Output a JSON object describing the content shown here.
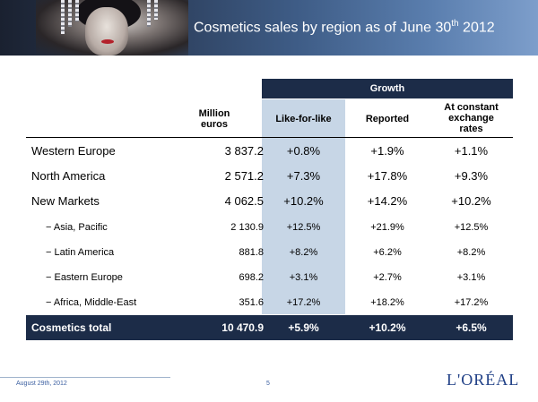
{
  "title": {
    "main": "Cosmetics sales by region as of June 30",
    "sup": "th",
    "year": " 2012"
  },
  "table": {
    "growth_header": "Growth",
    "col_million": [
      "Million",
      "euros"
    ],
    "col_lfl": "Like-for-like",
    "col_reported": "Reported",
    "col_constant": [
      "At constant",
      "exchange",
      "rates"
    ],
    "rows": [
      {
        "label": "Western Europe",
        "million": "3 837.2",
        "lfl": "+0.8%",
        "reported": "+1.9%",
        "constant": "+1.1%"
      },
      {
        "label": "North America",
        "million": "2 571.2",
        "lfl": "+7.3%",
        "reported": "+17.8%",
        "constant": "+9.3%"
      },
      {
        "label": "New Markets",
        "million": "4 062.5",
        "lfl": "+10.2%",
        "reported": "+14.2%",
        "constant": "+10.2%"
      },
      {
        "label": "− Asia, Pacific",
        "million": "2 130.9",
        "lfl": "+12.5%",
        "reported": "+21.9%",
        "constant": "+12.5%"
      },
      {
        "label": "− Latin America",
        "million": "881.8",
        "lfl": "+8.2%",
        "reported": "+6.2%",
        "constant": "+8.2%"
      },
      {
        "label": "− Eastern Europe",
        "million": "698.2",
        "lfl": "+3.1%",
        "reported": "+2.7%",
        "constant": "+3.1%"
      },
      {
        "label": "− Africa, Middle-East",
        "million": "351.6",
        "lfl": "+17.2%",
        "reported": "+18.2%",
        "constant": "+17.2%"
      }
    ],
    "total": {
      "label": "Cosmetics total",
      "million": "10 470.9",
      "lfl": "+5.9%",
      "reported": "+10.2%",
      "constant": "+6.5%"
    }
  },
  "footer": {
    "date": "August 29th, 2012",
    "page": "5",
    "logo": "L'ORÉAL"
  },
  "colors": {
    "navy": "#1c2c48",
    "lfl_highlight": "#c7d6e6"
  }
}
